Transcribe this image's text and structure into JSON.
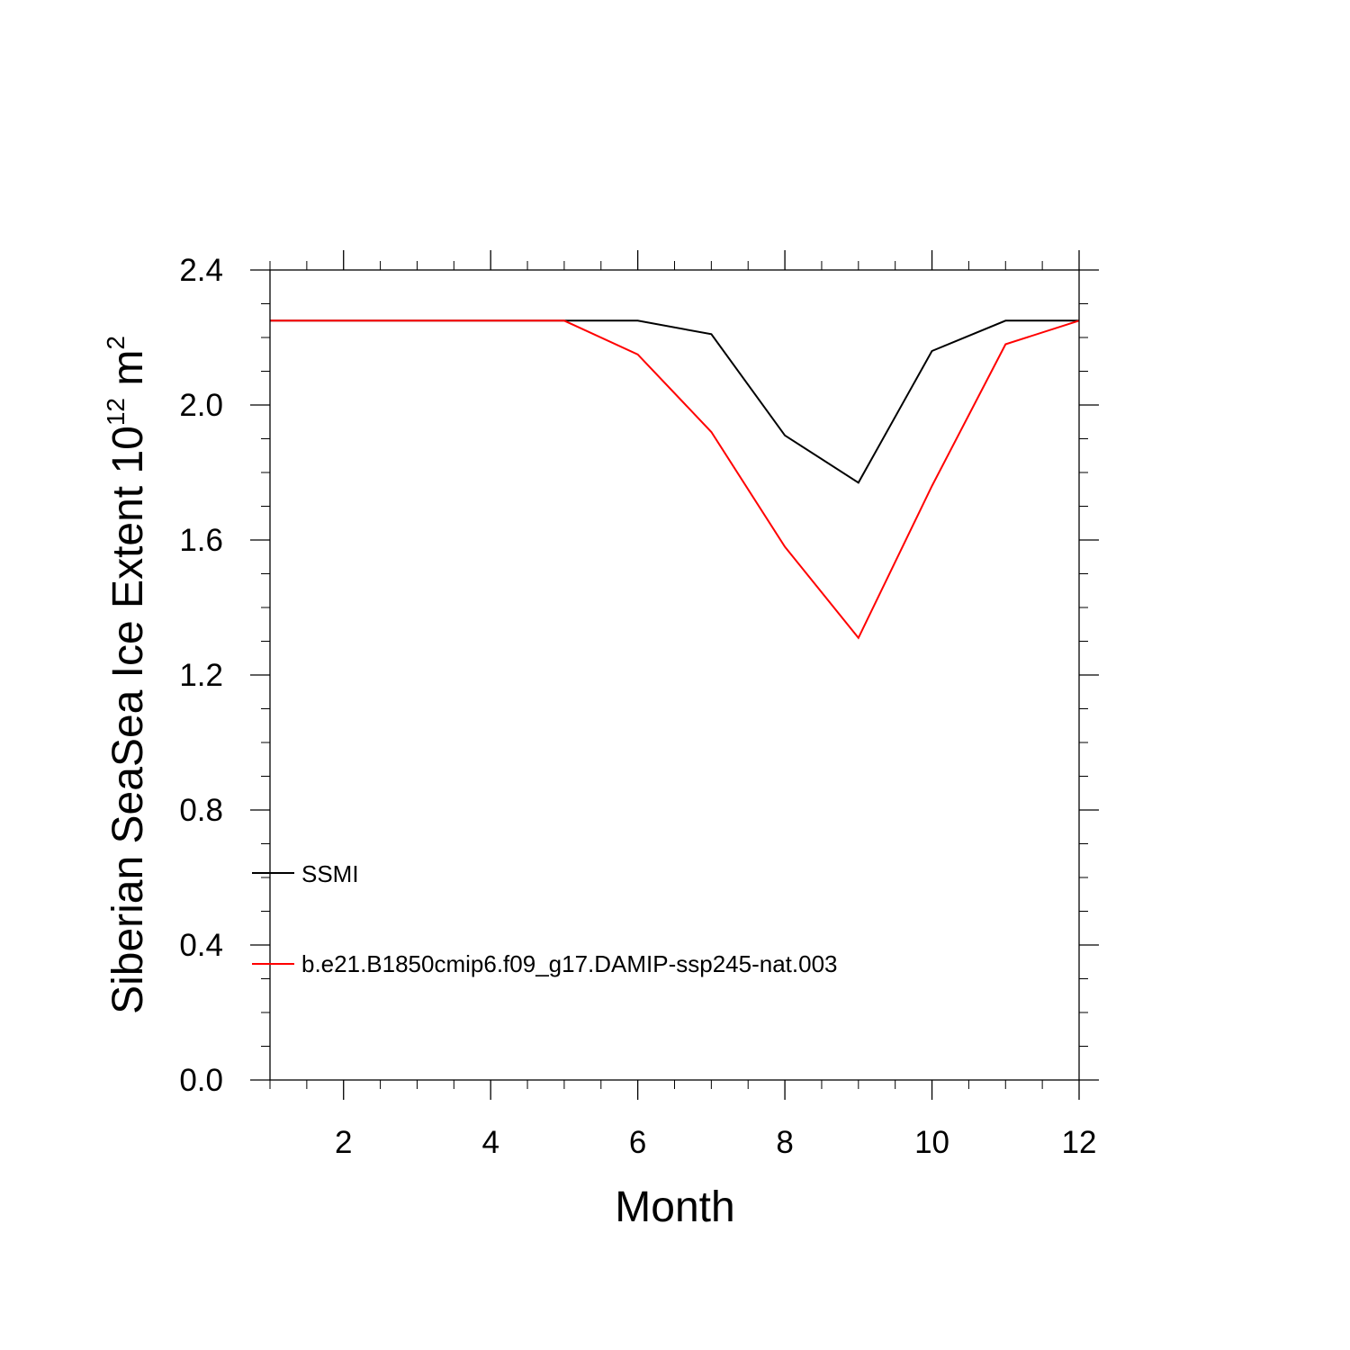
{
  "chart_data": {
    "type": "line",
    "xlabel": "Month",
    "ylabel": {
      "main": "Siberian SeaSea Ice Extent 10",
      "superscript_exponent": "12",
      "unit": " m",
      "superscript_unit": "2"
    },
    "xlim": [
      1,
      12
    ],
    "ylim": [
      0,
      2.4
    ],
    "x_ticks": [
      2,
      4,
      6,
      8,
      10,
      12
    ],
    "y_ticks": [
      0.0,
      0.4,
      0.8,
      1.2,
      1.6,
      2.0,
      2.4
    ],
    "x_tick_labels": [
      "2",
      "4",
      "6",
      "8",
      "10",
      "12"
    ],
    "y_tick_labels": [
      "0.0",
      "0.4",
      "0.8",
      "1.2",
      "1.6",
      "2.0",
      "2.4"
    ],
    "grid": false,
    "legend_placement": "lower-left",
    "x": [
      1,
      2,
      3,
      4,
      5,
      6,
      7,
      8,
      9,
      10,
      11,
      12
    ],
    "series": [
      {
        "name": "SSMI",
        "color": "#000000",
        "values": [
          2.25,
          2.25,
          2.25,
          2.25,
          2.25,
          2.25,
          2.21,
          1.91,
          1.77,
          2.16,
          2.25,
          2.25
        ]
      },
      {
        "name": "b.e21.B1850cmip6.f09_g17.DAMIP-ssp245-nat.003",
        "color": "#ff0000",
        "values": [
          2.25,
          2.25,
          2.25,
          2.25,
          2.25,
          2.15,
          1.92,
          1.58,
          1.31,
          1.76,
          2.18,
          2.25
        ]
      }
    ]
  }
}
